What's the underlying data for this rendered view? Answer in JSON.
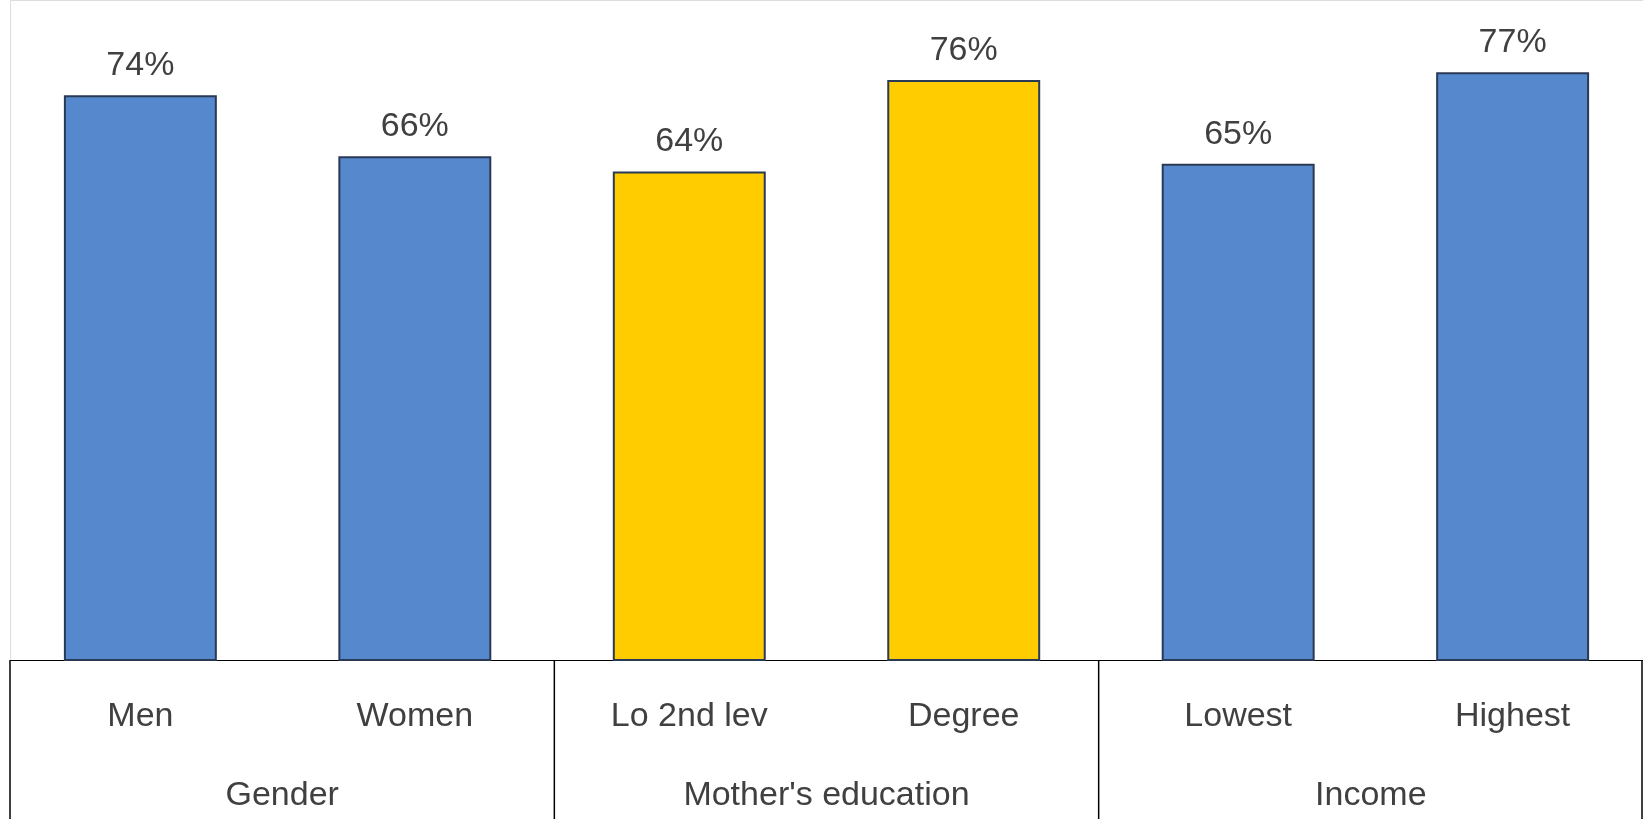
{
  "chart_data": {
    "type": "bar",
    "categories": [
      "Men",
      "Women",
      "Lo 2nd lev",
      "Degree",
      "Lowest",
      "Highest"
    ],
    "values": [
      74,
      66,
      64,
      76,
      65,
      77
    ],
    "value_labels": [
      "74%",
      "66%",
      "64%",
      "76%",
      "65%",
      "77%"
    ],
    "colors": [
      "#5588cc",
      "#5588cc",
      "#ffcc00",
      "#ffcc00",
      "#5588cc",
      "#5588cc"
    ],
    "annotations": [
      "Gender",
      "Mother's education",
      "Income"
    ]
  }
}
